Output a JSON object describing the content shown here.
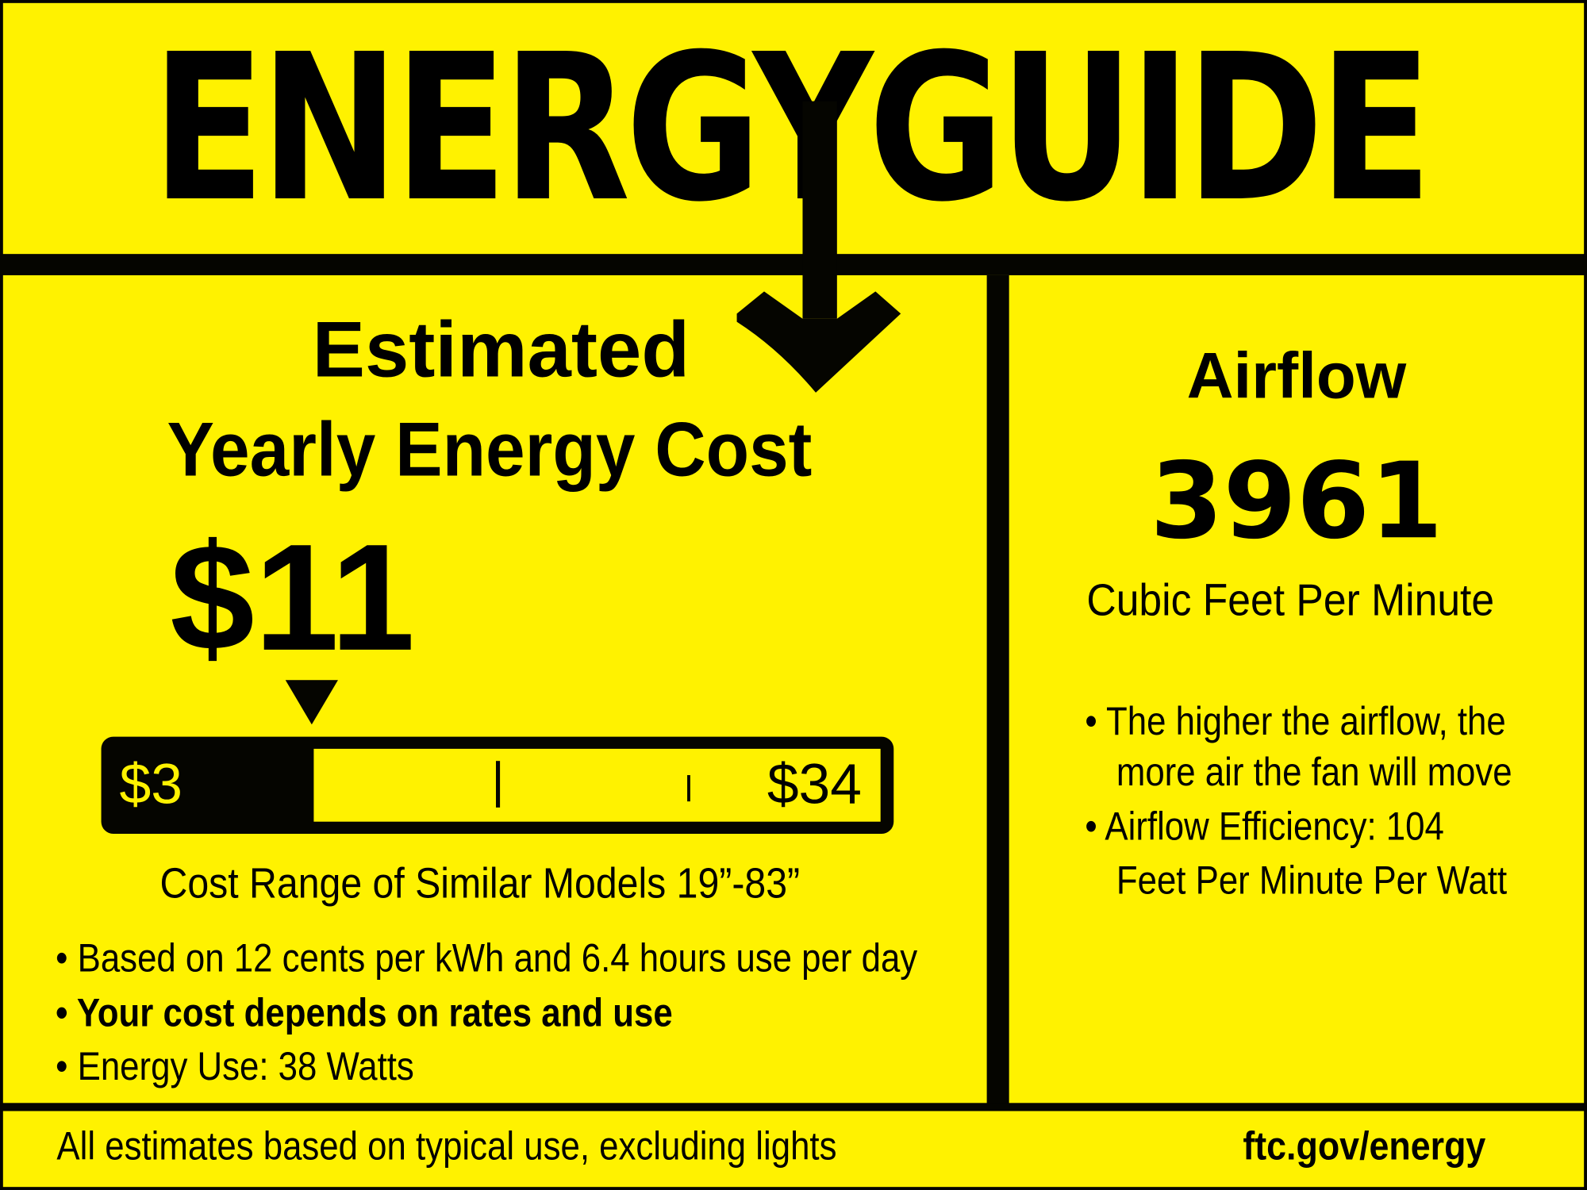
{
  "header": {
    "title": "ENERGYGUIDE"
  },
  "left": {
    "heading_line1": "Estimated",
    "heading_line2": "Yearly Energy Cost",
    "cost": "$11",
    "scale": {
      "min_label": "$3",
      "max_label": "$34",
      "min": 3,
      "max": 34,
      "value": 11
    },
    "range_caption": "Cost Range of Similar Models 19”-83”",
    "bullets": [
      "• Based on 12 cents per kWh and 6.4 hours use per day",
      "• Your cost depends on rates and use",
      "• Energy Use: 38 Watts"
    ]
  },
  "right": {
    "heading": "Airflow",
    "value": "3961",
    "unit": "Cubic Feet Per Minute",
    "bullets": [
      "• The higher the airflow, the",
      "more air the fan will move",
      "• Airflow Efficiency: 104",
      "Feet Per Minute Per Watt"
    ]
  },
  "footer": {
    "note": "All estimates based on typical use, excluding lights",
    "link": "ftc.gov/energy"
  },
  "colors": {
    "background": "#fff200",
    "ink": "#050500"
  }
}
